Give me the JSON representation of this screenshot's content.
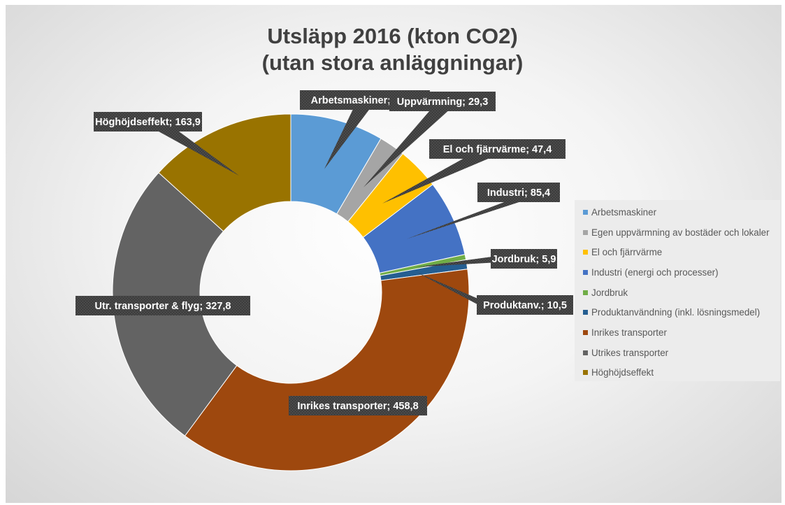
{
  "chart_data": {
    "type": "pie",
    "subtype": "doughnut",
    "title_lines": [
      "Utsläpp 2016 (kton CO2)",
      "(utan stora anläggningar)"
    ],
    "series": [
      {
        "name": "Arbetsmaskiner",
        "label": "Arbetsmaskiner; 104,1",
        "value": 104.1,
        "color": "#5B9BD5"
      },
      {
        "name": "Egen uppvärmning av bostäder och lokaler",
        "label": "Uppvärmning; 29,3",
        "value": 29.3,
        "color": "#A5A5A5"
      },
      {
        "name": "El och fjärrvärme",
        "label": "El och fjärrvärme; 47,4",
        "value": 47.4,
        "color": "#FFC000"
      },
      {
        "name": "Industri (energi och processer)",
        "label": "Industri; 85,4",
        "value": 85.4,
        "color": "#4472C4"
      },
      {
        "name": "Jordbruk",
        "label": "Jordbruk; 5,9",
        "value": 5.9,
        "color": "#70AD47"
      },
      {
        "name": "Produktanvändning (inkl. lösningsmedel)",
        "label": "Produktanv.; 10,5",
        "value": 10.5,
        "color": "#255E91"
      },
      {
        "name": "Inrikes transporter",
        "label": "Inrikes transporter; 458,8",
        "value": 458.8,
        "color": "#9E480E"
      },
      {
        "name": "Utrikes transporter",
        "label": "Utr. transporter & flyg; 327,8",
        "value": 327.8,
        "color": "#636363"
      },
      {
        "name": "Höghöjdseffekt",
        "label": "Höghöjdseffekt; 163,9",
        "value": 163.9,
        "color": "#997300"
      }
    ],
    "legend_position": "right",
    "label_background": "#404040"
  }
}
